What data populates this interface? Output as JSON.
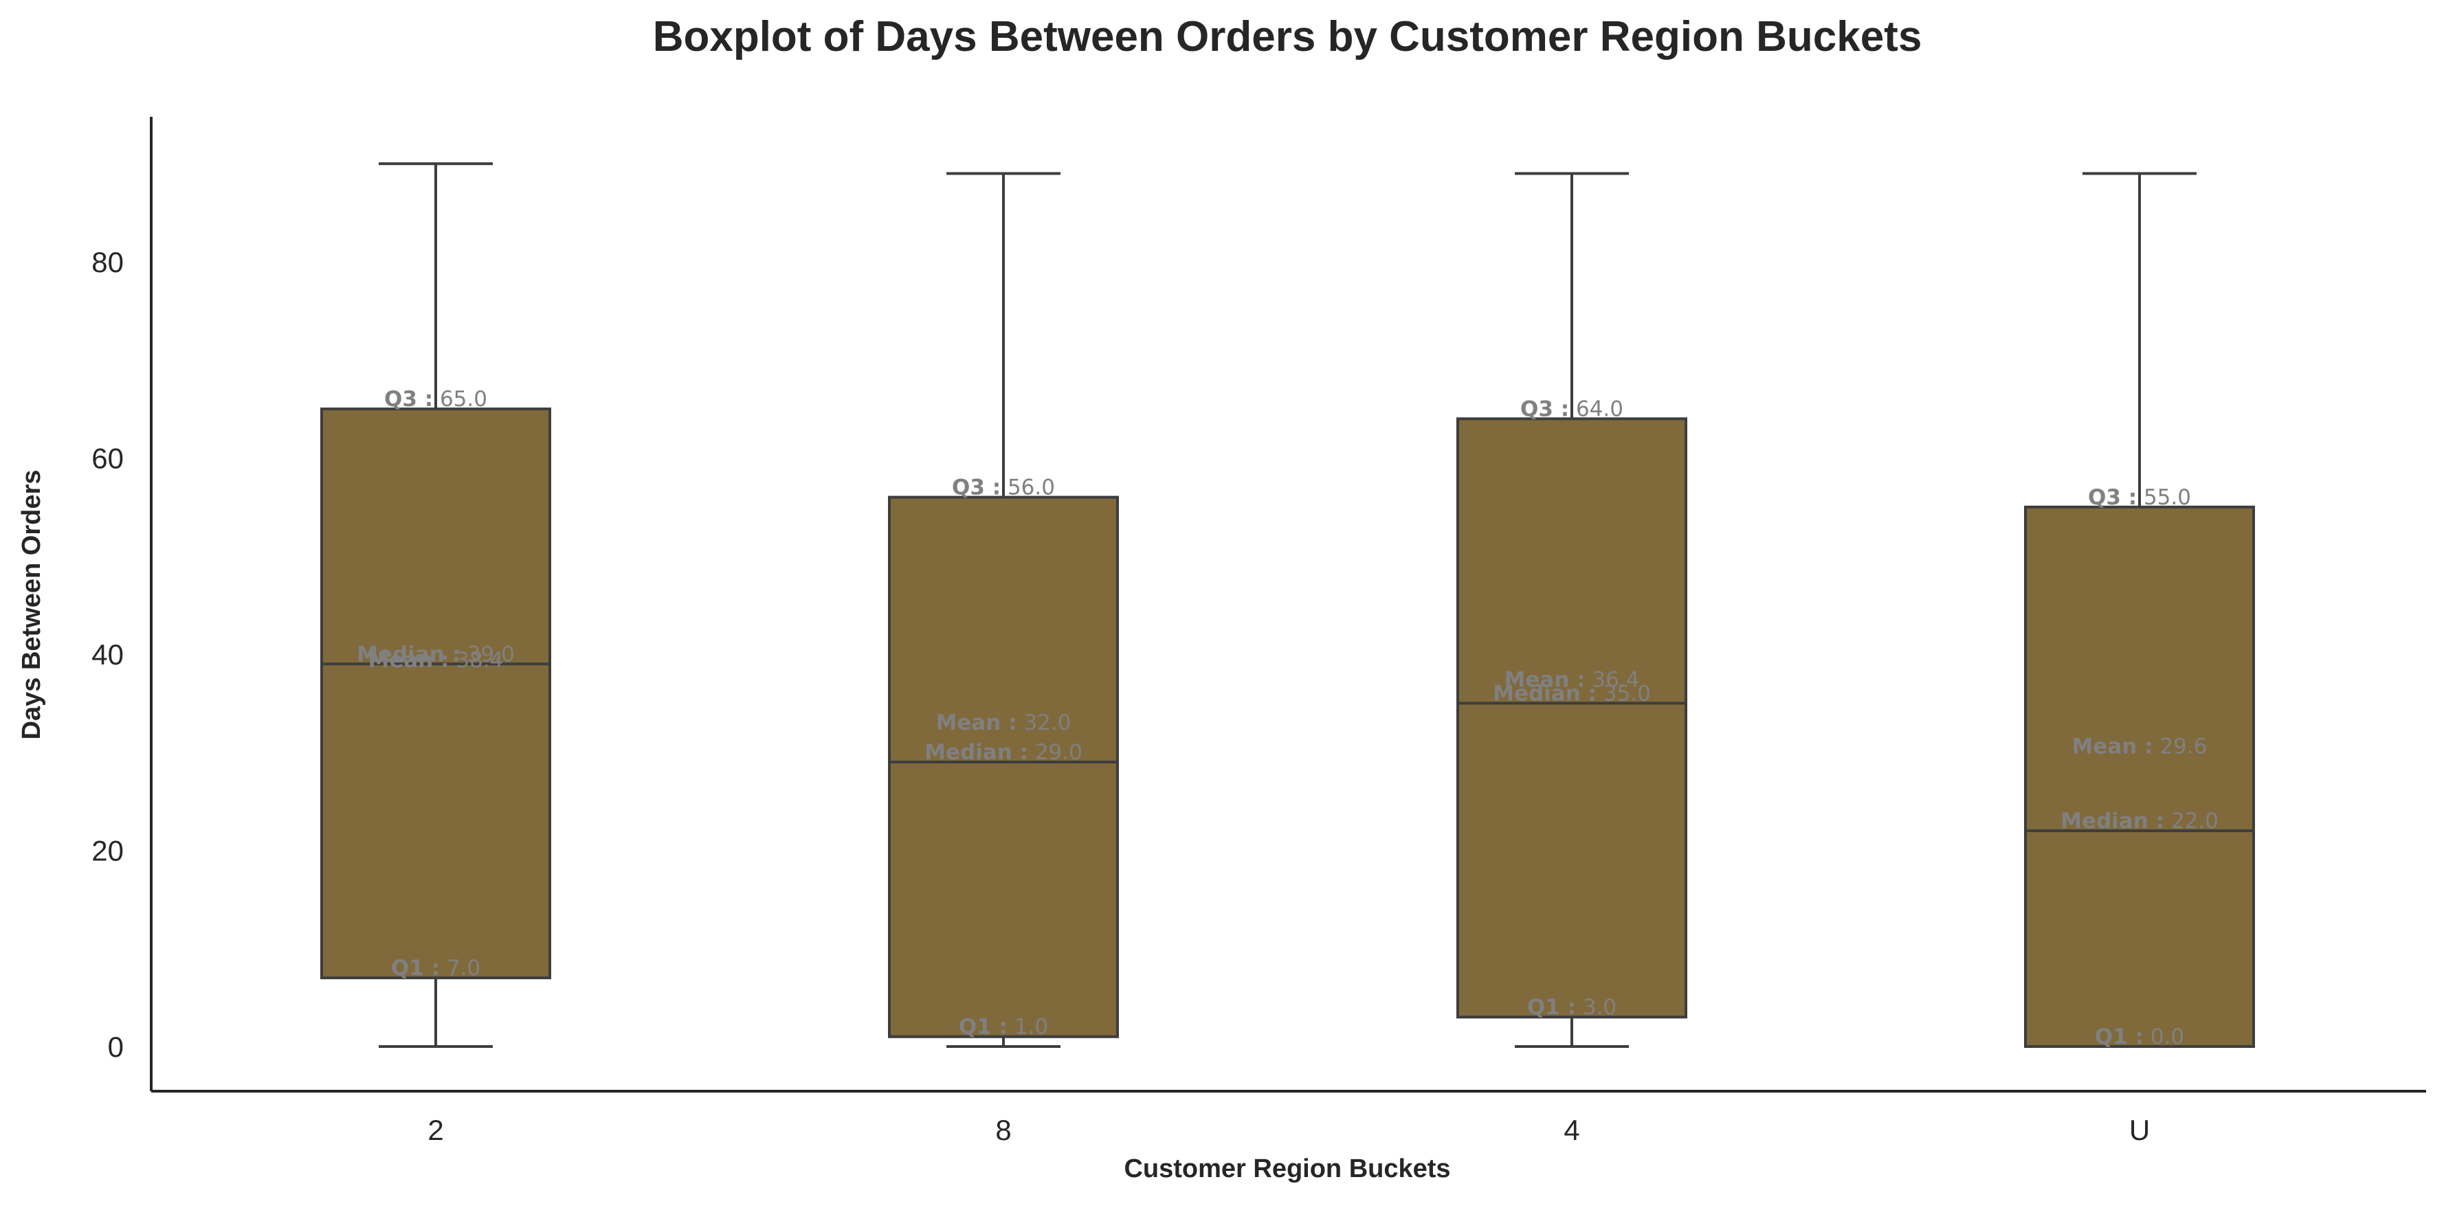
{
  "chart_data": {
    "type": "boxplot",
    "title": "Boxplot of Days Between Orders by Customer Region Buckets",
    "xlabel": "Customer Region Buckets",
    "ylabel": "Days Between Orders",
    "ylim": [
      -4.4,
      95
    ],
    "yticks": [
      0,
      20,
      40,
      60,
      80
    ],
    "grid": false,
    "box_color": "#80693b",
    "edge_color": "#3d3d3d",
    "annotation_color": "#808080",
    "stat_labels": {
      "q3": "Q3 :",
      "mean": "Mean :",
      "median": "Median :",
      "q1": "Q1 :"
    },
    "categories": [
      "2",
      "8",
      "4",
      "U"
    ],
    "boxes": [
      {
        "category": "2",
        "whisker_low": 0,
        "q1": 7.0,
        "median": 39.0,
        "mean": 38.4,
        "q3": 65.0,
        "whisker_high": 90,
        "q1_text": "7.0",
        "median_text": "39.0",
        "mean_text": "38.4",
        "q3_text": "65.0"
      },
      {
        "category": "8",
        "whisker_low": 0,
        "q1": 1.0,
        "median": 29.0,
        "mean": 32.0,
        "q3": 56.0,
        "whisker_high": 89,
        "q1_text": "1.0",
        "median_text": "29.0",
        "mean_text": "32.0",
        "q3_text": "56.0"
      },
      {
        "category": "4",
        "whisker_low": 0,
        "q1": 3.0,
        "median": 35.0,
        "mean": 36.4,
        "q3": 64.0,
        "whisker_high": 89,
        "q1_text": "3.0",
        "median_text": "35.0",
        "mean_text": "36.4",
        "q3_text": "64.0"
      },
      {
        "category": "U",
        "whisker_low": 0,
        "q1": 0.0,
        "median": 22.0,
        "mean": 29.6,
        "q3": 55.0,
        "whisker_high": 89,
        "q1_text": "0.0",
        "median_text": "22.0",
        "mean_text": "29.6",
        "q3_text": "55.0"
      }
    ]
  }
}
